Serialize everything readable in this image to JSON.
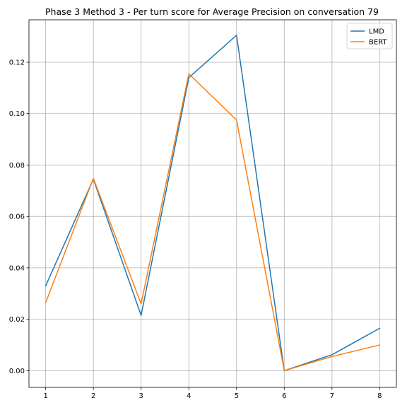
{
  "chart_data": {
    "type": "line",
    "title": "Phase 3 Method 3 - Per turn score for Average Precision on conversation 79",
    "xlabel": "",
    "ylabel": "",
    "x": [
      1,
      2,
      3,
      4,
      5,
      6,
      7,
      8
    ],
    "x_ticks": [
      "1",
      "2",
      "3",
      "4",
      "5",
      "6",
      "7",
      "8"
    ],
    "xlim": [
      0.65,
      8.35
    ],
    "ylim": [
      -0.0065,
      0.1365
    ],
    "y_ticks": [
      0.0,
      0.02,
      0.04,
      0.06,
      0.08,
      0.1,
      0.12
    ],
    "y_tick_labels": [
      "0.00",
      "0.02",
      "0.04",
      "0.06",
      "0.08",
      "0.10",
      "0.12"
    ],
    "grid": true,
    "legend_position": "top-right",
    "series": [
      {
        "name": "LMD",
        "color": "#1f77b4",
        "values": [
          0.033,
          0.0745,
          0.0215,
          0.114,
          0.1305,
          0.0,
          0.0062,
          0.0165
        ]
      },
      {
        "name": "BERT",
        "color": "#ff7f0e",
        "values": [
          0.0265,
          0.0748,
          0.026,
          0.1155,
          0.0975,
          0.0,
          0.0055,
          0.01
        ]
      }
    ]
  }
}
